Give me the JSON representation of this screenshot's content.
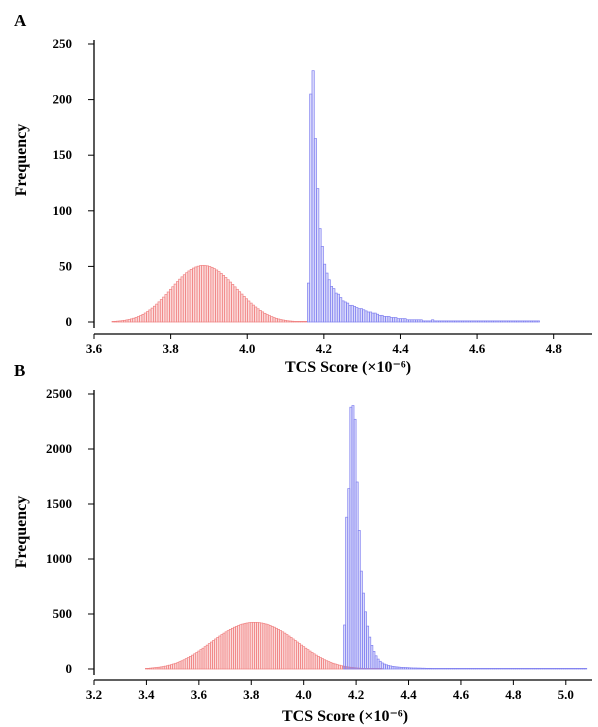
{
  "chart_data": [
    {
      "type": "bar",
      "panel_label": "A",
      "xlabel": "TCS Score (×10⁻⁶)",
      "ylabel": "Frequency",
      "xlim": [
        3.6,
        4.9
      ],
      "ylim": [
        0,
        250
      ],
      "xticks": [
        3.6,
        3.8,
        4.0,
        4.2,
        4.4,
        4.6,
        4.8
      ],
      "yticks": [
        0,
        50,
        100,
        150,
        200,
        250
      ],
      "grid": false,
      "series": [
        {
          "color": "#f08080",
          "bin_width": 0.006,
          "x": [
            3.65,
            3.656,
            3.662,
            3.668,
            3.674,
            3.68,
            3.686,
            3.692,
            3.698,
            3.704,
            3.71,
            3.716,
            3.722,
            3.728,
            3.734,
            3.74,
            3.746,
            3.752,
            3.758,
            3.764,
            3.77,
            3.776,
            3.782,
            3.788,
            3.794,
            3.8,
            3.806,
            3.812,
            3.818,
            3.824,
            3.83,
            3.836,
            3.842,
            3.848,
            3.854,
            3.86,
            3.866,
            3.872,
            3.878,
            3.884,
            3.89,
            3.896,
            3.902,
            3.908,
            3.914,
            3.92,
            3.926,
            3.932,
            3.938,
            3.944,
            3.95,
            3.956,
            3.962,
            3.968,
            3.974,
            3.98,
            3.986,
            3.992,
            3.998,
            4.004,
            4.01,
            4.016,
            4.022,
            4.028,
            4.034,
            4.04,
            4.046,
            4.052,
            4.058,
            4.064,
            4.07,
            4.076,
            4.082,
            4.088,
            4.094,
            4.1,
            4.106,
            4.112,
            4.118,
            4.124,
            4.13,
            4.136,
            4.142,
            4.148,
            4.154
          ],
          "values": [
            0.5,
            0.6,
            0.8,
            1,
            1.2,
            1.5,
            1.9,
            2.3,
            2.8,
            3.4,
            4.1,
            4.9,
            5.8,
            6.9,
            8.1,
            9.4,
            10.9,
            12.5,
            14.2,
            16.1,
            18.1,
            20.2,
            22.4,
            24.7,
            27,
            29.4,
            31.7,
            34.1,
            36.3,
            38.5,
            40.6,
            42.5,
            44.3,
            45.9,
            47.3,
            48.5,
            49.5,
            50.2,
            50.7,
            50.9,
            50.8,
            50.5,
            49.9,
            49.1,
            48,
            46.8,
            45.3,
            43.7,
            41.9,
            40,
            38,
            35.9,
            33.8,
            31.6,
            29.4,
            27.2,
            25.1,
            23,
            20.9,
            18.9,
            17,
            15.2,
            13.5,
            11.9,
            10.4,
            9.1,
            7.8,
            6.7,
            5.7,
            4.8,
            4,
            3.3,
            2.7,
            2.2,
            1.8,
            1.4,
            1.1,
            0.9,
            0.7,
            0.5,
            0.4,
            0.3,
            0.3,
            0.2,
            0.2
          ]
        },
        {
          "color": "#8080f0",
          "bin_width": 0.006,
          "x": [
            4.16,
            4.166,
            4.172,
            4.178,
            4.184,
            4.19,
            4.196,
            4.202,
            4.208,
            4.214,
            4.22,
            4.226,
            4.232,
            4.238,
            4.244,
            4.25,
            4.256,
            4.262,
            4.268,
            4.274,
            4.28,
            4.286,
            4.292,
            4.298,
            4.304,
            4.31,
            4.316,
            4.322,
            4.328,
            4.334,
            4.34,
            4.346,
            4.352,
            4.358,
            4.364,
            4.37,
            4.376,
            4.382,
            4.388,
            4.394,
            4.4,
            4.406,
            4.412,
            4.418,
            4.424,
            4.43,
            4.436,
            4.442,
            4.448,
            4.454,
            4.46,
            4.466,
            4.472,
            4.478,
            4.484,
            4.49,
            4.496,
            4.502,
            4.508,
            4.514,
            4.52,
            4.526,
            4.532,
            4.538,
            4.544,
            4.55,
            4.556,
            4.562,
            4.568,
            4.574,
            4.58,
            4.586,
            4.592,
            4.598,
            4.604,
            4.61,
            4.616,
            4.622,
            4.628,
            4.634,
            4.64,
            4.646,
            4.652,
            4.658,
            4.664,
            4.67,
            4.676,
            4.682,
            4.688,
            4.694,
            4.7,
            4.706,
            4.712,
            4.718,
            4.724,
            4.73,
            4.736,
            4.742,
            4.748,
            4.754,
            4.76
          ],
          "values": [
            35,
            205,
            226,
            165,
            120,
            84,
            68,
            52,
            44,
            38,
            32,
            30,
            26,
            25,
            22,
            19,
            18,
            17,
            15,
            15,
            14,
            13,
            12,
            12,
            11,
            10,
            9,
            9,
            8,
            8,
            7,
            6,
            6,
            5,
            5,
            5,
            4,
            4,
            4,
            3,
            3,
            3,
            3,
            2,
            2,
            2,
            2,
            2,
            2,
            2,
            1,
            1,
            1,
            1,
            2,
            1,
            1,
            1,
            1,
            1,
            1,
            1,
            1,
            1,
            1,
            1,
            1,
            1,
            1,
            1,
            1,
            1,
            1,
            1,
            1,
            1,
            1,
            1,
            1,
            1,
            1,
            1,
            1,
            1,
            1,
            1,
            1,
            1,
            1,
            1,
            1,
            1,
            1,
            1,
            1,
            1,
            1,
            1,
            1,
            1,
            1
          ]
        }
      ]
    },
    {
      "type": "bar",
      "panel_label": "B",
      "xlabel": "TCS Score (×10⁻⁶)",
      "ylabel": "Frequency",
      "xlim": [
        3.2,
        5.1
      ],
      "ylim": [
        0,
        2500
      ],
      "xticks": [
        3.2,
        3.4,
        3.6,
        3.8,
        4.0,
        4.2,
        4.4,
        4.6,
        4.8,
        5.0
      ],
      "yticks": [
        0,
        500,
        1000,
        1500,
        2000,
        2500
      ],
      "grid": false,
      "series": [
        {
          "color": "#f08080",
          "bin_width": 0.008,
          "x": [
            3.4,
            3.408,
            3.416,
            3.424,
            3.432,
            3.44,
            3.448,
            3.456,
            3.464,
            3.472,
            3.48,
            3.488,
            3.496,
            3.504,
            3.512,
            3.52,
            3.528,
            3.536,
            3.544,
            3.552,
            3.56,
            3.568,
            3.576,
            3.584,
            3.592,
            3.6,
            3.608,
            3.616,
            3.624,
            3.632,
            3.64,
            3.648,
            3.656,
            3.664,
            3.672,
            3.68,
            3.688,
            3.696,
            3.704,
            3.712,
            3.72,
            3.728,
            3.736,
            3.744,
            3.752,
            3.76,
            3.768,
            3.776,
            3.784,
            3.792,
            3.8,
            3.808,
            3.816,
            3.824,
            3.832,
            3.84,
            3.848,
            3.856,
            3.864,
            3.872,
            3.88,
            3.888,
            3.896,
            3.904,
            3.912,
            3.92,
            3.928,
            3.936,
            3.944,
            3.952,
            3.96,
            3.968,
            3.976,
            3.984,
            3.992,
            4,
            4.008,
            4.016,
            4.024,
            4.032,
            4.04,
            4.048,
            4.056,
            4.064,
            4.072,
            4.08,
            4.088,
            4.096,
            4.104,
            4.112,
            4.12,
            4.128,
            4.136,
            4.144,
            4.152,
            4.16,
            4.168,
            4.176,
            4.184,
            4.192,
            4.2,
            4.208,
            4.216,
            4.224,
            4.232,
            4.24,
            4.248,
            4.256,
            4.264,
            4.272,
            4.28,
            4.288,
            4.296
          ],
          "values": [
            5,
            6,
            8,
            10,
            12,
            14,
            16,
            19,
            22,
            26,
            30,
            35,
            40,
            46,
            52,
            59,
            67,
            75,
            84,
            94,
            104,
            115,
            126,
            138,
            150,
            163,
            176,
            189,
            203,
            217,
            231,
            245,
            259,
            273,
            287,
            300,
            313,
            326,
            338,
            349,
            360,
            370,
            380,
            388,
            396,
            403,
            409,
            414,
            418,
            421,
            423,
            424,
            424,
            423,
            421,
            418,
            414,
            409,
            403,
            396,
            388,
            380,
            370,
            360,
            349,
            338,
            326,
            313,
            300,
            287,
            273,
            259,
            245,
            231,
            217,
            203,
            189,
            176,
            163,
            150,
            138,
            126,
            115,
            104,
            94,
            84,
            75,
            67,
            59,
            52,
            46,
            40,
            35,
            30,
            26,
            22,
            19,
            16,
            14,
            12,
            10,
            8,
            7,
            6,
            5,
            4,
            3,
            3,
            2,
            2,
            2,
            1,
            1
          ]
        },
        {
          "color": "#8080f0",
          "bin_width": 0.008,
          "x": [
            4.156,
            4.164,
            4.172,
            4.18,
            4.188,
            4.196,
            4.204,
            4.212,
            4.22,
            4.228,
            4.236,
            4.244,
            4.252,
            4.26,
            4.268,
            4.276,
            4.284,
            4.292,
            4.3,
            4.308,
            4.316,
            4.324,
            4.332,
            4.34,
            4.348,
            4.356,
            4.364,
            4.372,
            4.38,
            4.388,
            4.396,
            4.404,
            4.412,
            4.42,
            4.428,
            4.436,
            4.444,
            4.452,
            4.46,
            4.468,
            4.476,
            4.484,
            4.492,
            4.5,
            4.508,
            4.516,
            4.524,
            4.532,
            4.54,
            4.548,
            4.556,
            4.564,
            4.572,
            4.58,
            4.588,
            4.596,
            4.604,
            4.612,
            4.62,
            4.628,
            4.636,
            4.644,
            4.652,
            4.66,
            4.668,
            4.676,
            4.684,
            4.692,
            4.7,
            4.708,
            4.716,
            4.724,
            4.732,
            4.74,
            4.748,
            4.756,
            4.764,
            4.772,
            4.78,
            4.788,
            4.796,
            4.804,
            4.812,
            4.82,
            4.828,
            4.836,
            4.844,
            4.852,
            4.86,
            4.868,
            4.876,
            4.884,
            4.892,
            4.9,
            4.908,
            4.916,
            4.924,
            4.932,
            4.94,
            4.948,
            4.956,
            4.964,
            4.972,
            4.98,
            4.988,
            4.996,
            5.004,
            5.012,
            5.02,
            5.028,
            5.036,
            5.044,
            5.052,
            5.06,
            5.068,
            5.076
          ],
          "values": [
            400,
            1380,
            1640,
            2380,
            2395,
            2270,
            1700,
            1260,
            890,
            690,
            520,
            390,
            290,
            215,
            160,
            120,
            90,
            70,
            55,
            45,
            38,
            32,
            28,
            24,
            21,
            19,
            17,
            15,
            14,
            13,
            12,
            11,
            10,
            9,
            9,
            8,
            8,
            7,
            7,
            6,
            6,
            6,
            5,
            5,
            5,
            4,
            4,
            4,
            4,
            3,
            3,
            3,
            3,
            3,
            3,
            2,
            2,
            2,
            2,
            2,
            2,
            2,
            2,
            2,
            2,
            2,
            2,
            2,
            2,
            2,
            1,
            1,
            1,
            1,
            1,
            1,
            1,
            1,
            1,
            1,
            1,
            1,
            1,
            1,
            1,
            1,
            1,
            1,
            1,
            1,
            1,
            1,
            1,
            1,
            1,
            1,
            1,
            1,
            1,
            1,
            1,
            1,
            1,
            1,
            1,
            1,
            1,
            1,
            1,
            1,
            1,
            1,
            1,
            1,
            1,
            1
          ]
        }
      ]
    }
  ]
}
